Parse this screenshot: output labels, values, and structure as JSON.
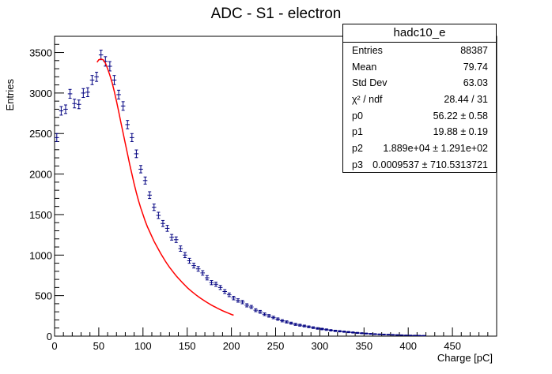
{
  "chart_data": {
    "type": "histogram",
    "title": "ADC - S1 - electron",
    "xlabel": "Charge [pC]",
    "ylabel": "Entries",
    "xlim": [
      0,
      500
    ],
    "ylim": [
      0,
      3700
    ],
    "x_ticks": [
      0,
      50,
      100,
      150,
      200,
      250,
      300,
      350,
      400,
      450
    ],
    "y_ticks": [
      0,
      500,
      1000,
      1500,
      2000,
      2500,
      3000,
      3500
    ],
    "bin_width": 5,
    "series": [
      {
        "name": "hadc10_e",
        "style": "points-with-error-bars",
        "color": "#000080",
        "x": [
          2.5,
          7.5,
          12.5,
          17.5,
          22.5,
          27.5,
          32.5,
          37.5,
          42.5,
          47.5,
          52.5,
          57.5,
          62.5,
          67.5,
          72.5,
          77.5,
          82.5,
          87.5,
          92.5,
          97.5,
          102.5,
          107.5,
          112.5,
          117.5,
          122.5,
          127.5,
          132.5,
          137.5,
          142.5,
          147.5,
          152.5,
          157.5,
          162.5,
          167.5,
          172.5,
          177.5,
          182.5,
          187.5,
          192.5,
          197.5,
          202.5,
          207.5,
          212.5,
          217.5,
          222.5,
          227.5,
          232.5,
          237.5,
          242.5,
          247.5,
          252.5,
          257.5,
          262.5,
          267.5,
          272.5,
          277.5,
          282.5,
          287.5,
          292.5,
          297.5,
          302.5,
          307.5,
          312.5,
          317.5,
          322.5,
          327.5,
          332.5,
          337.5,
          342.5,
          347.5,
          352.5,
          357.5,
          362.5,
          367.5,
          372.5,
          377.5,
          382.5,
          387.5,
          392.5,
          397.5,
          402.5,
          407.5,
          412.5,
          417.5
        ],
        "y": [
          2450,
          2780,
          2800,
          2990,
          2870,
          2860,
          3000,
          3010,
          3160,
          3200,
          3470,
          3390,
          3330,
          3160,
          2980,
          2840,
          2610,
          2450,
          2250,
          2060,
          1920,
          1740,
          1590,
          1490,
          1390,
          1330,
          1220,
          1190,
          1080,
          1000,
          930,
          870,
          830,
          780,
          720,
          660,
          640,
          600,
          550,
          510,
          470,
          440,
          420,
          380,
          360,
          320,
          300,
          270,
          250,
          230,
          210,
          190,
          175,
          160,
          145,
          135,
          125,
          115,
          105,
          95,
          88,
          80,
          72,
          65,
          60,
          55,
          50,
          45,
          40,
          36,
          32,
          28,
          25,
          22,
          20,
          18,
          16,
          14,
          12,
          10,
          9,
          8,
          7,
          6
        ]
      },
      {
        "name": "fit",
        "style": "line",
        "color": "#ff0000",
        "x": [
          48,
          50,
          52.5,
          55,
          57.5,
          60,
          62.5,
          65,
          67.5,
          70,
          72.5,
          75,
          77.5,
          80,
          82.5,
          85,
          87.5,
          90,
          92.5,
          95,
          97.5,
          100,
          102.5,
          105,
          107.5,
          110,
          112.5,
          115,
          117.5,
          120,
          122.5,
          125,
          127.5,
          130,
          132.5,
          135,
          137.5,
          140,
          142.5,
          145,
          147.5,
          150,
          152.5,
          155,
          157.5,
          160,
          162.5,
          165,
          167.5,
          170,
          172.5,
          175,
          177.5,
          180,
          182.5,
          185,
          187.5,
          190,
          192.5,
          195,
          197.5,
          200,
          202.5
        ],
        "y": [
          3380,
          3410,
          3420,
          3410,
          3370,
          3300,
          3220,
          3130,
          3020,
          2900,
          2770,
          2640,
          2510,
          2380,
          2250,
          2120,
          2000,
          1880,
          1770,
          1670,
          1580,
          1500,
          1420,
          1350,
          1290,
          1230,
          1170,
          1120,
          1070,
          1020,
          975,
          930,
          890,
          850,
          815,
          780,
          745,
          715,
          685,
          655,
          628,
          600,
          575,
          552,
          530,
          508,
          488,
          468,
          450,
          432,
          415,
          399,
          383,
          368,
          354,
          340,
          327,
          314,
          302,
          290,
          279,
          268,
          258
        ]
      }
    ]
  },
  "stats_box": {
    "title": "hadc10_e",
    "rows": [
      {
        "label": "Entries",
        "value": "88387"
      },
      {
        "label": "Mean",
        "value": "79.74"
      },
      {
        "label": "Std Dev",
        "value": "63.03"
      },
      {
        "label": "χ² / ndf",
        "value": "28.44 / 31"
      },
      {
        "label": "p0",
        "value": "56.22 ± 0.58"
      },
      {
        "label": "p1",
        "value": "19.88 ± 0.19"
      },
      {
        "label": "p2",
        "value": "1.889e+04 ± 1.291e+02"
      },
      {
        "label": "p3",
        "value": "0.0009537 ± 710.5313721"
      }
    ]
  }
}
